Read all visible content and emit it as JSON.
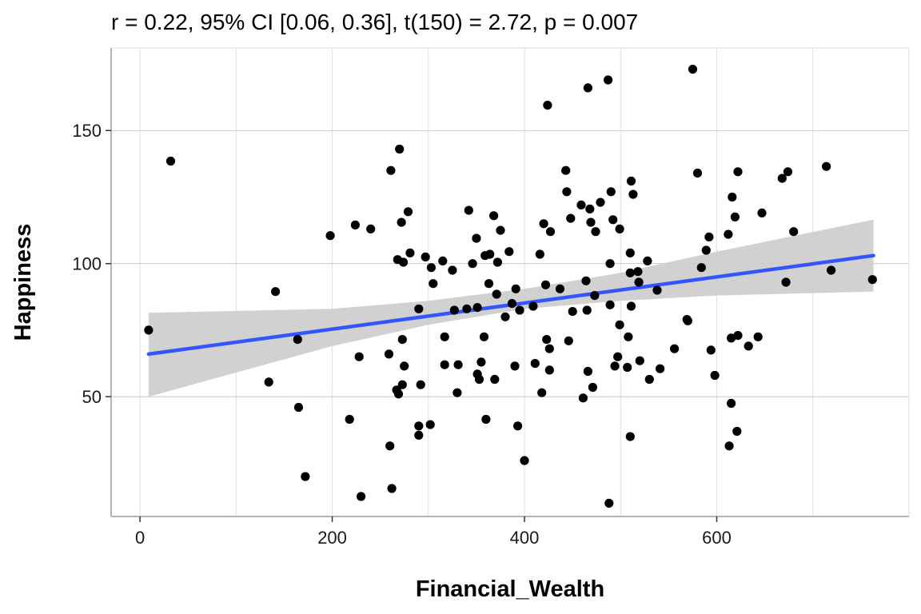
{
  "title": "r = 0.22, 95% CI [0.06, 0.36], t(150) = 2.72, p = 0.007",
  "chart_data": {
    "type": "scatter",
    "title": "r = 0.22, 95% CI [0.06, 0.36], t(150) = 2.72, p = 0.007",
    "xlabel": "Financial_Wealth",
    "ylabel": "Happiness",
    "xlim": [
      -30,
      800
    ],
    "ylim": [
      5,
      181
    ],
    "x_ticks": [
      0,
      200,
      400,
      600
    ],
    "x_tick_labels": [
      "0",
      "200",
      "400",
      "600"
    ],
    "y_ticks": [
      50,
      100,
      150
    ],
    "y_tick_labels": [
      "50",
      "100",
      "150"
    ],
    "grid": true,
    "legend": "none",
    "colors": {
      "points": "#000000",
      "regression_line": "#3355ff",
      "confidence_band": "#cccccc",
      "grid": "#d9d9d9",
      "panel_border": "#b3b3b3"
    },
    "regression": {
      "x_range": [
        9,
        763
      ],
      "y_start": 66,
      "y_end": 103,
      "ci_lower": [
        {
          "x": 9,
          "y": 50
        },
        {
          "x": 200,
          "y": 69
        },
        {
          "x": 300,
          "y": 77
        },
        {
          "x": 400,
          "y": 83
        },
        {
          "x": 500,
          "y": 86
        },
        {
          "x": 600,
          "y": 88
        },
        {
          "x": 763,
          "y": 89.5
        }
      ],
      "ci_upper": [
        {
          "x": 9,
          "y": 81.5
        },
        {
          "x": 200,
          "y": 83
        },
        {
          "x": 300,
          "y": 86
        },
        {
          "x": 400,
          "y": 90.5
        },
        {
          "x": 500,
          "y": 96.5
        },
        {
          "x": 600,
          "y": 104.5
        },
        {
          "x": 763,
          "y": 116.5
        }
      ]
    },
    "points": [
      [
        9,
        75
      ],
      [
        32,
        138.5
      ],
      [
        134,
        55.5
      ],
      [
        141,
        89.5
      ],
      [
        164,
        71.5
      ],
      [
        165,
        46
      ],
      [
        172,
        20
      ],
      [
        198,
        110.5
      ],
      [
        218,
        41.5
      ],
      [
        224,
        114.5
      ],
      [
        228,
        65
      ],
      [
        230,
        12.5
      ],
      [
        240,
        113
      ],
      [
        259,
        66
      ],
      [
        260,
        31.5
      ],
      [
        261,
        135
      ],
      [
        262,
        15.5
      ],
      [
        267,
        52.5
      ],
      [
        268,
        101.5
      ],
      [
        269,
        51
      ],
      [
        270,
        143
      ],
      [
        272,
        115.5
      ],
      [
        273,
        71.5
      ],
      [
        273,
        54.5
      ],
      [
        274,
        100.5
      ],
      [
        275,
        61.5
      ],
      [
        279,
        119.5
      ],
      [
        281,
        104
      ],
      [
        290,
        83
      ],
      [
        290,
        39
      ],
      [
        290,
        35.5
      ],
      [
        292,
        54.5
      ],
      [
        297,
        102.5
      ],
      [
        302,
        39.5
      ],
      [
        303,
        98.5
      ],
      [
        305,
        92.5
      ],
      [
        315,
        101
      ],
      [
        317,
        72.5
      ],
      [
        317,
        62
      ],
      [
        325,
        97.5
      ],
      [
        327,
        82.5
      ],
      [
        330,
        51.5
      ],
      [
        331,
        62
      ],
      [
        340,
        83
      ],
      [
        342,
        120
      ],
      [
        346,
        100
      ],
      [
        350,
        109.5
      ],
      [
        351,
        83.5
      ],
      [
        351,
        58.5
      ],
      [
        353,
        56.5
      ],
      [
        355,
        63
      ],
      [
        358,
        72.5
      ],
      [
        359,
        103
      ],
      [
        360,
        41.5
      ],
      [
        363,
        92.5
      ],
      [
        364,
        103.5
      ],
      [
        368,
        118
      ],
      [
        369,
        56.5
      ],
      [
        371,
        88.5
      ],
      [
        372,
        100.5
      ],
      [
        375,
        112.5
      ],
      [
        380,
        80
      ],
      [
        384,
        104.5
      ],
      [
        387,
        85
      ],
      [
        390,
        61.5
      ],
      [
        391,
        90.5
      ],
      [
        393,
        39
      ],
      [
        395,
        82.5
      ],
      [
        400,
        26
      ],
      [
        409,
        84
      ],
      [
        411,
        62.5
      ],
      [
        416,
        103.5
      ],
      [
        418,
        51.5
      ],
      [
        420,
        115
      ],
      [
        422,
        92
      ],
      [
        423,
        71.5
      ],
      [
        424,
        159.5
      ],
      [
        426,
        60
      ],
      [
        426,
        68
      ],
      [
        427,
        112
      ],
      [
        437,
        90.5
      ],
      [
        443,
        135
      ],
      [
        444,
        127
      ],
      [
        446,
        71
      ],
      [
        448,
        117
      ],
      [
        450,
        82
      ],
      [
        459,
        122
      ],
      [
        461,
        49.5
      ],
      [
        464,
        93.5
      ],
      [
        465,
        82.5
      ],
      [
        466,
        59.5
      ],
      [
        466,
        166
      ],
      [
        468,
        120.5
      ],
      [
        469,
        115.5
      ],
      [
        471,
        53.5
      ],
      [
        473,
        88
      ],
      [
        474,
        112
      ],
      [
        479,
        123
      ],
      [
        487,
        169
      ],
      [
        488,
        10
      ],
      [
        489,
        100
      ],
      [
        489,
        84.5
      ],
      [
        490,
        127
      ],
      [
        492,
        116.5
      ],
      [
        494,
        61.5
      ],
      [
        497,
        65
      ],
      [
        499,
        113
      ],
      [
        499,
        77
      ],
      [
        507,
        61
      ],
      [
        508,
        72.5
      ],
      [
        510,
        35
      ],
      [
        510,
        104
      ],
      [
        510,
        96.5
      ],
      [
        511,
        84
      ],
      [
        511,
        131
      ],
      [
        513,
        126
      ],
      [
        518,
        97
      ],
      [
        519,
        93
      ],
      [
        520,
        63.5
      ],
      [
        528,
        101
      ],
      [
        530,
        56.5
      ],
      [
        538,
        90
      ],
      [
        541,
        60.5
      ],
      [
        556,
        68
      ],
      [
        569,
        79
      ],
      [
        570,
        78.5
      ],
      [
        580,
        134
      ],
      [
        584,
        98.5
      ],
      [
        589,
        105
      ],
      [
        592,
        110
      ],
      [
        594,
        67.5
      ],
      [
        598,
        58
      ],
      [
        612,
        111
      ],
      [
        613,
        31.5
      ],
      [
        615,
        72
      ],
      [
        615,
        47.5
      ],
      [
        616,
        125
      ],
      [
        619,
        117.5
      ],
      [
        621,
        37
      ],
      [
        622,
        134.5
      ],
      [
        622,
        73
      ],
      [
        633,
        69
      ],
      [
        643,
        72.5
      ],
      [
        647,
        119
      ],
      [
        668,
        132
      ],
      [
        672,
        93
      ],
      [
        674,
        134.5
      ],
      [
        680,
        112
      ],
      [
        714,
        136.5
      ],
      [
        719,
        97.5
      ],
      [
        762,
        94
      ],
      [
        575,
        173
      ]
    ]
  }
}
